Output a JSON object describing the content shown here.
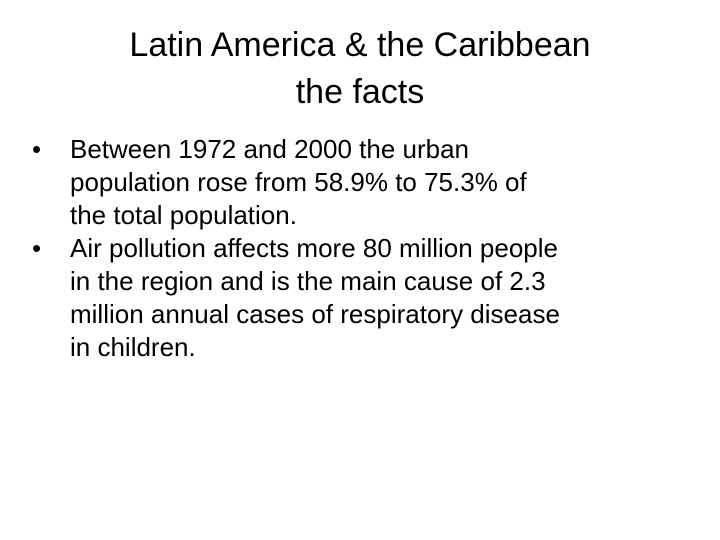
{
  "slide": {
    "title_lines": [
      "Latin America & the Caribbean",
      "the facts"
    ],
    "bullet_symbol": "•",
    "bullets": [
      {
        "lines": [
          "Between 1972 and 2000 the urban",
          "population rose from 58.9% to 75.3% of",
          "the total population."
        ]
      },
      {
        "lines": [
          "Air pollution affects more 80 million people",
          "in the region and is the main cause of 2.3",
          "million annual cases of respiratory disease",
          "in children."
        ]
      }
    ]
  }
}
